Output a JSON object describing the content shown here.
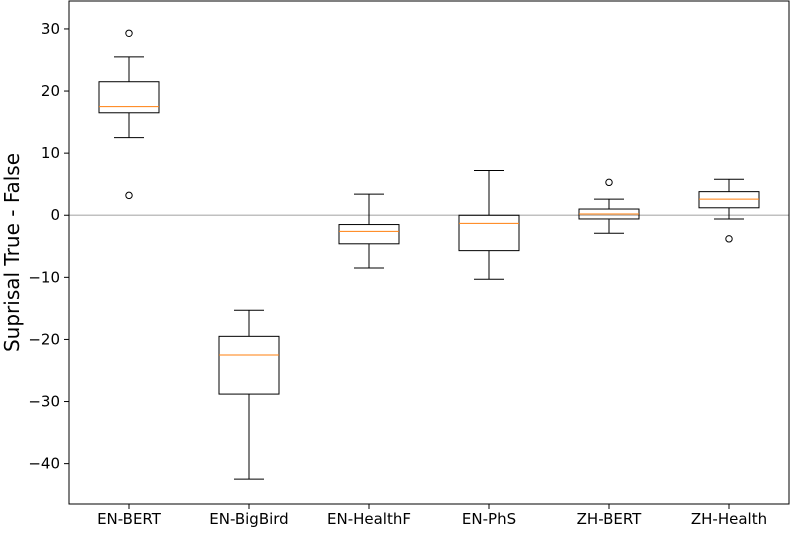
{
  "chart_data": {
    "type": "boxplot",
    "title": "",
    "xlabel": "",
    "ylabel": "Suprisal True - False",
    "ylim": [
      -46.5,
      34.5
    ],
    "yticks": [
      30,
      20,
      10,
      0,
      -10,
      -20,
      -30,
      -40
    ],
    "reference_line": 0,
    "grid": false,
    "colors": {
      "box": "#000000",
      "median": "#ff7f0e",
      "reference": "#c0c0c0"
    },
    "categories": [
      "EN-BERT",
      "EN-BigBird",
      "EN-HealthF",
      "EN-PhS",
      "ZH-BERT",
      "ZH-Health"
    ],
    "boxes": [
      {
        "whisker_low": 12.5,
        "q1": 16.5,
        "median": 17.5,
        "q3": 21.5,
        "whisker_high": 25.5,
        "outliers": [
          29.3,
          3.2
        ]
      },
      {
        "whisker_low": -42.5,
        "q1": -28.8,
        "median": -22.5,
        "q3": -19.5,
        "whisker_high": -15.3,
        "outliers": []
      },
      {
        "whisker_low": -8.5,
        "q1": -4.6,
        "median": -2.6,
        "q3": -1.5,
        "whisker_high": 3.4,
        "outliers": []
      },
      {
        "whisker_low": -10.3,
        "q1": -5.7,
        "median": -1.3,
        "q3": 0.0,
        "whisker_high": 7.2,
        "outliers": []
      },
      {
        "whisker_low": -2.9,
        "q1": -0.6,
        "median": 0.2,
        "q3": 1.0,
        "whisker_high": 2.6,
        "outliers": [
          5.3
        ]
      },
      {
        "whisker_low": -0.6,
        "q1": 1.2,
        "median": 2.6,
        "q3": 3.8,
        "whisker_high": 5.8,
        "outliers": [
          -3.8
        ]
      }
    ]
  }
}
